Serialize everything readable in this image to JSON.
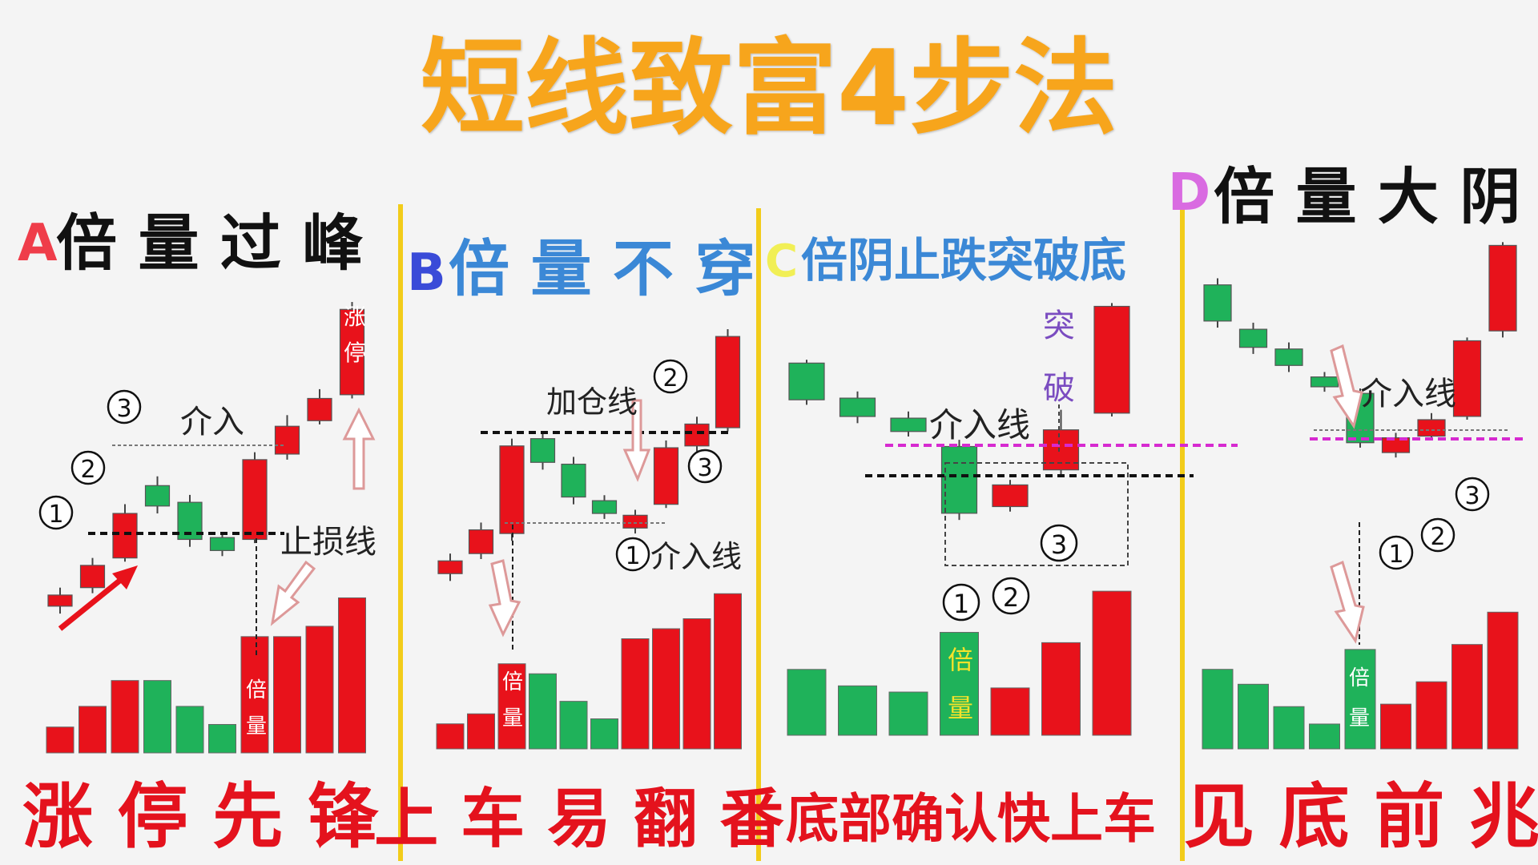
{
  "title": "短线致富4步法",
  "colors": {
    "title": "#f7a51c",
    "up": "#e8121b",
    "down": "#1fb25a",
    "divider": "#f2cc1a",
    "dashed_black": "#111111",
    "dashed_magenta": "#d62ad0",
    "letter_a": "#ef3d4a",
    "letter_b": "#3a4bd8",
    "letter_c": "#f1ef55",
    "letter_d": "#d96be1",
    "heading_blue": "#3b88d6",
    "caption": "#e4121d"
  },
  "panels": [
    {
      "letter": "A",
      "heading": "倍 量 过 峰",
      "caption": "涨 停 先 锋",
      "labels": {
        "markers": [
          "1",
          "2",
          "3"
        ],
        "entry": "介入",
        "stop": "止损线",
        "limit_up_char1": "涨",
        "limit_up_char2": "停",
        "vol_char1": "倍",
        "vol_char2": "量"
      },
      "candles": [
        {
          "dir": "up",
          "open": 1.0,
          "close": 1.6,
          "high": 2.0,
          "low": 0.6
        },
        {
          "dir": "up",
          "open": 2.0,
          "close": 3.2,
          "high": 3.6,
          "low": 1.7
        },
        {
          "dir": "up",
          "open": 3.6,
          "close": 6.0,
          "high": 6.5,
          "low": 3.4
        },
        {
          "dir": "down",
          "open": 7.5,
          "close": 6.4,
          "high": 8.0,
          "low": 6.0
        },
        {
          "dir": "down",
          "open": 6.6,
          "close": 4.6,
          "high": 7.0,
          "low": 4.2
        },
        {
          "dir": "down",
          "open": 4.7,
          "close": 4.0,
          "high": 5.0,
          "low": 3.7
        },
        {
          "dir": "up",
          "open": 4.6,
          "close": 8.9,
          "high": 9.3,
          "low": 4.4
        },
        {
          "dir": "up",
          "open": 9.2,
          "close": 10.7,
          "high": 11.3,
          "low": 8.9
        },
        {
          "dir": "up",
          "open": 11.0,
          "close": 12.2,
          "high": 12.7,
          "low": 10.8
        },
        {
          "dir": "up",
          "open": 12.4,
          "close": 17.0,
          "high": 17.4,
          "low": 12.2
        }
      ],
      "volumes": [
        {
          "dir": "up",
          "v": 1.0
        },
        {
          "dir": "up",
          "v": 1.8
        },
        {
          "dir": "up",
          "v": 2.8
        },
        {
          "dir": "down",
          "v": 2.8
        },
        {
          "dir": "down",
          "v": 1.8
        },
        {
          "dir": "down",
          "v": 1.1
        },
        {
          "dir": "up",
          "v": 4.5
        },
        {
          "dir": "up",
          "v": 4.5
        },
        {
          "dir": "up",
          "v": 4.9
        },
        {
          "dir": "up",
          "v": 6.0
        }
      ]
    },
    {
      "letter": "B",
      "heading": "倍 量 不 穿",
      "caption": "上 车 易 翻 番",
      "labels": {
        "markers": [
          "1",
          "2",
          "3"
        ],
        "add": "加仓线",
        "entry": "介入线",
        "vol_char1": "倍",
        "vol_char2": "量"
      },
      "candles": [
        {
          "dir": "up",
          "open": 2.8,
          "close": 3.5,
          "high": 3.9,
          "low": 2.4
        },
        {
          "dir": "up",
          "open": 3.9,
          "close": 5.2,
          "high": 5.6,
          "low": 3.6
        },
        {
          "dir": "up",
          "open": 5.0,
          "close": 9.8,
          "high": 10.2,
          "low": 4.6
        },
        {
          "dir": "down",
          "open": 10.2,
          "close": 8.9,
          "high": 10.6,
          "low": 8.5
        },
        {
          "dir": "down",
          "open": 8.8,
          "close": 7.0,
          "high": 9.2,
          "low": 6.6
        },
        {
          "dir": "down",
          "open": 6.8,
          "close": 6.1,
          "high": 7.1,
          "low": 5.8
        },
        {
          "dir": "up",
          "open": 5.3,
          "close": 6.0,
          "high": 6.3,
          "low": 5.0
        },
        {
          "dir": "up",
          "open": 6.6,
          "close": 9.7,
          "high": 10.1,
          "low": 6.4
        },
        {
          "dir": "up",
          "open": 9.8,
          "close": 11.0,
          "high": 11.4,
          "low": 9.5
        },
        {
          "dir": "up",
          "open": 10.8,
          "close": 15.8,
          "high": 16.2,
          "low": 10.6
        }
      ],
      "volumes": [
        {
          "dir": "up",
          "v": 1.0
        },
        {
          "dir": "up",
          "v": 1.4
        },
        {
          "dir": "up",
          "v": 3.4
        },
        {
          "dir": "down",
          "v": 3.0
        },
        {
          "dir": "down",
          "v": 1.9
        },
        {
          "dir": "down",
          "v": 1.2
        },
        {
          "dir": "up",
          "v": 4.4
        },
        {
          "dir": "up",
          "v": 4.8
        },
        {
          "dir": "up",
          "v": 5.2
        },
        {
          "dir": "up",
          "v": 6.2
        }
      ]
    },
    {
      "letter": "C",
      "heading": "倍阴止跌突破底",
      "caption": "底部确认快上车",
      "labels": {
        "markers": [
          "1",
          "2",
          "3"
        ],
        "entry": "介入线",
        "break_char1": "突",
        "break_char2": "破",
        "vol_char1": "倍",
        "vol_char2": "量"
      },
      "candles": [
        {
          "dir": "down",
          "open": 14.0,
          "close": 11.8,
          "high": 14.2,
          "low": 11.5
        },
        {
          "dir": "down",
          "open": 11.9,
          "close": 10.8,
          "high": 12.3,
          "low": 10.4
        },
        {
          "dir": "down",
          "open": 10.7,
          "close": 9.9,
          "high": 11.1,
          "low": 9.6
        },
        {
          "dir": "down",
          "open": 9.0,
          "close": 5.0,
          "high": 9.4,
          "low": 4.6
        },
        {
          "dir": "up",
          "open": 5.4,
          "close": 6.7,
          "high": 7.0,
          "low": 5.1
        },
        {
          "dir": "up",
          "open": 7.6,
          "close": 10.0,
          "high": 11.2,
          "low": 7.2
        },
        {
          "dir": "up",
          "open": 11.0,
          "close": 17.4,
          "high": 17.6,
          "low": 10.8
        }
      ],
      "volumes": [
        {
          "dir": "down",
          "v": 3.2
        },
        {
          "dir": "down",
          "v": 2.4
        },
        {
          "dir": "down",
          "v": 2.1
        },
        {
          "dir": "down",
          "v": 5.0
        },
        {
          "dir": "up",
          "v": 2.3
        },
        {
          "dir": "up",
          "v": 4.5
        },
        {
          "dir": "up",
          "v": 7.0
        }
      ]
    },
    {
      "letter": "D",
      "heading": "倍 量 大 阴",
      "caption": "见 底 前 兆",
      "labels": {
        "markers": [
          "1",
          "2",
          "3"
        ],
        "entry": "介入线",
        "vol_char1": "倍",
        "vol_char2": "量"
      },
      "candles": [
        {
          "dir": "down",
          "open": 15.8,
          "close": 13.6,
          "high": 16.2,
          "low": 13.2
        },
        {
          "dir": "down",
          "open": 13.1,
          "close": 12.0,
          "high": 13.5,
          "low": 11.6
        },
        {
          "dir": "down",
          "open": 11.9,
          "close": 10.9,
          "high": 12.3,
          "low": 10.5
        },
        {
          "dir": "down",
          "open": 10.2,
          "close": 9.6,
          "high": 10.5,
          "low": 9.3
        },
        {
          "dir": "down",
          "open": 9.2,
          "close": 6.2,
          "high": 9.5,
          "low": 5.9
        },
        {
          "dir": "up",
          "open": 5.6,
          "close": 6.5,
          "high": 6.8,
          "low": 5.3
        },
        {
          "dir": "up",
          "open": 6.6,
          "close": 7.6,
          "high": 8.0,
          "low": 6.4
        },
        {
          "dir": "up",
          "open": 7.8,
          "close": 12.4,
          "high": 12.6,
          "low": 7.6
        },
        {
          "dir": "up",
          "open": 13.0,
          "close": 18.2,
          "high": 18.4,
          "low": 12.6
        }
      ],
      "volumes": [
        {
          "dir": "down",
          "v": 3.2
        },
        {
          "dir": "down",
          "v": 2.6
        },
        {
          "dir": "down",
          "v": 1.7
        },
        {
          "dir": "down",
          "v": 1.0
        },
        {
          "dir": "down",
          "v": 4.0
        },
        {
          "dir": "up",
          "v": 1.8
        },
        {
          "dir": "up",
          "v": 2.7
        },
        {
          "dir": "up",
          "v": 4.2
        },
        {
          "dir": "up",
          "v": 5.5
        }
      ]
    }
  ]
}
